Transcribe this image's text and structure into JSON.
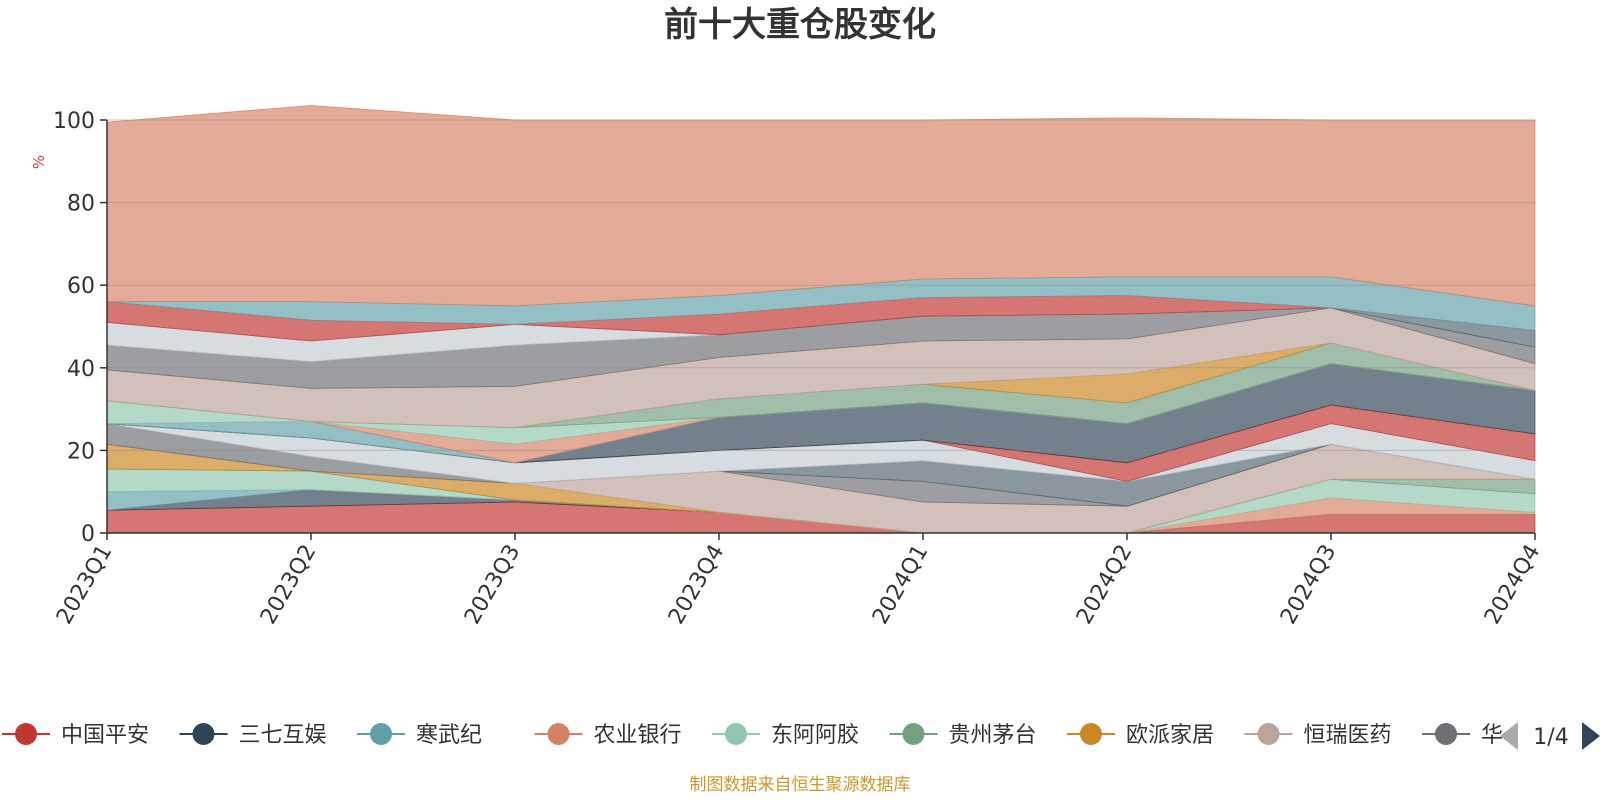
{
  "chart_data": {
    "type": "area",
    "stacked": true,
    "title": "前十大重仓股变化",
    "ylabel": "%",
    "ylim": [
      0,
      100
    ],
    "yticks": [
      "0",
      "20",
      "40",
      "60",
      "80",
      "100"
    ],
    "categories": [
      "2023Q1",
      "2023Q2",
      "2023Q3",
      "2023Q4",
      "2024Q1",
      "2024Q2",
      "2024Q3",
      "2024Q4"
    ],
    "grid": true,
    "legend_position": "bottom",
    "series": [
      {
        "name": "中国平安",
        "color": "#c23531",
        "values": [
          5.5,
          6.5,
          7.5,
          5.0,
          0.0,
          0.0,
          4.5,
          4.5
        ]
      },
      {
        "name": "三七互娱",
        "color": "#2f4554",
        "values": [
          0.0,
          4.0,
          0.5,
          0.0,
          0.0,
          0.0,
          0.0,
          0.0
        ]
      },
      {
        "name": "寒武纪",
        "color": "#61a0a8",
        "values": [
          4.5,
          0.0,
          0.0,
          0.0,
          0.0,
          0.0,
          0.0,
          0.0
        ]
      },
      {
        "name": "农业银行",
        "color": "#d48265",
        "values": [
          0.0,
          0.0,
          0.0,
          0.0,
          0.0,
          0.0,
          4.0,
          0.5
        ]
      },
      {
        "name": "东阿阿胶",
        "color": "#91c7ae",
        "values": [
          5.5,
          4.5,
          0.0,
          0.0,
          0.0,
          0.0,
          4.5,
          4.5
        ]
      },
      {
        "name": "贵州茅台",
        "color": "#749f83",
        "values": [
          0.0,
          0.0,
          0.0,
          0.0,
          0.0,
          0.0,
          0.0,
          3.5
        ]
      },
      {
        "name": "欧派家居",
        "color": "#ca8622",
        "values": [
          6.0,
          0.0,
          4.0,
          0.0,
          0.0,
          0.0,
          0.0,
          0.0
        ]
      },
      {
        "name": "恒瑞医药",
        "color": "#bda29a",
        "values": [
          0.0,
          0.0,
          0.0,
          10.0,
          7.5,
          6.5,
          8.5,
          0.0
        ]
      },
      {
        "name": "华",
        "color": "#6e7074",
        "values": [
          5.0,
          3.5,
          0.0,
          0.0,
          5.0,
          0.0,
          0.0,
          0.0
        ]
      },
      {
        "name": "",
        "color": "#546570",
        "values": [
          0.0,
          0.0,
          0.0,
          0.0,
          5.0,
          6.0,
          0.0,
          0.0
        ]
      },
      {
        "name": "",
        "color": "#c4ccd3",
        "values": [
          0.0,
          4.5,
          5.0,
          5.0,
          5.0,
          0.0,
          5.0,
          4.5
        ]
      },
      {
        "name": "",
        "color": "#c23531",
        "values": [
          0.0,
          0.0,
          0.0,
          0.0,
          0.0,
          4.5,
          4.5,
          6.5
        ]
      },
      {
        "name": "",
        "color": "#2f4554",
        "values": [
          0.0,
          0.0,
          0.0,
          8.0,
          9.0,
          9.5,
          10.0,
          10.5
        ]
      },
      {
        "name": "",
        "color": "#61a0a8",
        "values": [
          0.0,
          4.0,
          0.0,
          0.0,
          0.0,
          0.0,
          0.0,
          0.0
        ]
      },
      {
        "name": "",
        "color": "#d48265",
        "values": [
          0.0,
          0.0,
          4.5,
          0.0,
          0.0,
          0.0,
          0.0,
          0.0
        ]
      },
      {
        "name": "",
        "color": "#91c7ae",
        "values": [
          5.5,
          0.0,
          4.0,
          0.0,
          0.0,
          0.0,
          0.0,
          0.0
        ]
      },
      {
        "name": "",
        "color": "#749f83",
        "values": [
          0.0,
          0.0,
          0.0,
          4.5,
          4.5,
          5.0,
          5.0,
          0.0
        ]
      },
      {
        "name": "",
        "color": "#ca8622",
        "values": [
          0.0,
          0.0,
          0.0,
          0.0,
          0.0,
          7.0,
          0.0,
          0.0
        ]
      },
      {
        "name": "",
        "color": "#bda29a",
        "values": [
          7.5,
          8.0,
          10.0,
          10.0,
          10.5,
          8.5,
          8.5,
          6.5
        ]
      },
      {
        "name": "",
        "color": "#6e7074",
        "values": [
          6.0,
          6.5,
          10.0,
          5.5,
          6.0,
          6.0,
          0.0,
          4.0
        ]
      },
      {
        "name": "",
        "color": "#546570",
        "values": [
          0.0,
          0.0,
          0.0,
          0.0,
          0.0,
          0.0,
          0.0,
          4.0
        ]
      },
      {
        "name": "",
        "color": "#c4ccd3",
        "values": [
          5.5,
          5.0,
          5.0,
          0.0,
          0.0,
          0.0,
          0.0,
          0.0
        ]
      },
      {
        "name": "",
        "color": "#c23531",
        "values": [
          5.0,
          5.0,
          0.0,
          5.0,
          4.5,
          4.5,
          0.0,
          0.0
        ]
      },
      {
        "name": "",
        "color": "#61a0a8",
        "values": [
          0.0,
          4.5,
          4.5,
          4.5,
          4.5,
          4.5,
          7.5,
          6.0
        ]
      },
      {
        "name": "",
        "color": "#d48265",
        "values": [
          43.5,
          47.5,
          45.0,
          42.5,
          38.5,
          38.5,
          38.0,
          45.0
        ]
      }
    ]
  },
  "legend": {
    "visible_items": [
      "中国平安",
      "三七互娱",
      "寒武纪",
      "农业银行",
      "东阿阿胶",
      "贵州茅台",
      "欧派家居",
      "恒瑞医药",
      "华"
    ],
    "page_indicator": "1/4"
  },
  "colors": {
    "arrow_disabled": "#aaaaaa",
    "arrow_active": "#2f4554",
    "source_text": "#c9992a"
  },
  "footer": {
    "source": "制图数据来自恒生聚源数据库"
  }
}
